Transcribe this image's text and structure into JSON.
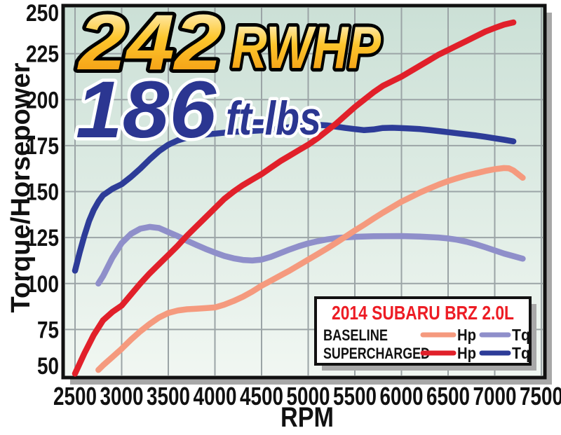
{
  "callouts": {
    "hp": {
      "value": "242",
      "unit": "RWHP"
    },
    "tq": {
      "value": "186",
      "unit": "ft-lbs"
    }
  },
  "axes": {
    "y_label": "Torque/Horsepower",
    "x_label": "RPM",
    "y_ticks": [
      250,
      225,
      200,
      175,
      150,
      125,
      100,
      75,
      50
    ],
    "x_ticks": [
      2500,
      3000,
      3500,
      4000,
      4500,
      5000,
      5500,
      6000,
      6500,
      7000,
      7500
    ]
  },
  "legend": {
    "title": "2014 SUBARU BRZ 2.0L",
    "rows": [
      {
        "label": "BASELINE",
        "entries": [
          {
            "name": "Hp",
            "color": "#f59a7e"
          },
          {
            "name": "Tq",
            "color": "#8f8fca"
          }
        ]
      },
      {
        "label": "SUPERCHARGED",
        "entries": [
          {
            "name": "Hp",
            "color": "#e1202a"
          },
          {
            "name": "Tq",
            "color": "#2d3c98"
          }
        ]
      }
    ]
  },
  "colors": {
    "gold_top": "#fffef2",
    "gold_mid": "#fdc62c",
    "gold_bottom": "#f1930e",
    "blue_text": "#2b3691",
    "bg_top": "#cbe0d6",
    "bg_bottom": "#f1f7f2",
    "grid": "#9ba4a6",
    "border": "#111111",
    "shadow": "#a8a8a8",
    "legend_title": "#ed1c24",
    "axis_text": "#111111"
  },
  "chart_data": {
    "type": "line",
    "title": "242 RWHP / 186 ft-lbs",
    "subtitle": "2014 Subaru BRZ 2.0L baseline vs supercharged dyno",
    "xlabel": "RPM",
    "ylabel": "Torque/Horsepower",
    "xlim": [
      2500,
      7500
    ],
    "ylim": [
      50,
      250
    ],
    "x_tick_step": 500,
    "y_tick_step": 25,
    "grid": true,
    "legend_position": "bottom-right",
    "series": [
      {
        "name": "Baseline Tq",
        "color": "#8f8fca",
        "points": [
          [
            2750,
            100
          ],
          [
            2800,
            104
          ],
          [
            2900,
            114
          ],
          [
            3000,
            122
          ],
          [
            3100,
            127
          ],
          [
            3200,
            129.8
          ],
          [
            3300,
            130.8
          ],
          [
            3400,
            130.2
          ],
          [
            3500,
            128
          ],
          [
            3600,
            125.8
          ],
          [
            3700,
            123.3
          ],
          [
            3800,
            121
          ],
          [
            3900,
            118.8
          ],
          [
            4000,
            116.8
          ],
          [
            4100,
            115
          ],
          [
            4200,
            113.7
          ],
          [
            4300,
            112.8
          ],
          [
            4400,
            112.5
          ],
          [
            4500,
            113
          ],
          [
            4600,
            114.5
          ],
          [
            4700,
            116.5
          ],
          [
            4800,
            118.5
          ],
          [
            4900,
            120.3
          ],
          [
            5000,
            121.8
          ],
          [
            5100,
            123
          ],
          [
            5200,
            124
          ],
          [
            5300,
            124.7
          ],
          [
            5400,
            125.1
          ],
          [
            5500,
            125.4
          ],
          [
            5700,
            125.7
          ],
          [
            6000,
            125.8
          ],
          [
            6200,
            125.5
          ],
          [
            6400,
            125
          ],
          [
            6500,
            124.5
          ],
          [
            6600,
            123.8
          ],
          [
            6700,
            122.7
          ],
          [
            6800,
            121.3
          ],
          [
            6900,
            119.7
          ],
          [
            7000,
            118
          ],
          [
            7100,
            116.3
          ],
          [
            7200,
            114.9
          ],
          [
            7300,
            113.5
          ]
        ]
      },
      {
        "name": "Baseline Hp",
        "color": "#f59a7e",
        "points": [
          [
            2750,
            53
          ],
          [
            2800,
            55.5
          ],
          [
            2900,
            60
          ],
          [
            3000,
            64.5
          ],
          [
            3100,
            69.5
          ],
          [
            3200,
            74
          ],
          [
            3300,
            78
          ],
          [
            3400,
            81.5
          ],
          [
            3500,
            84
          ],
          [
            3600,
            85.3
          ],
          [
            3700,
            86
          ],
          [
            3800,
            86.3
          ],
          [
            3900,
            86.6
          ],
          [
            4000,
            87
          ],
          [
            4100,
            88.5
          ],
          [
            4200,
            90.5
          ],
          [
            4300,
            92.8
          ],
          [
            4400,
            95.6
          ],
          [
            4500,
            98.8
          ],
          [
            4600,
            101.5
          ],
          [
            4700,
            104.3
          ],
          [
            4800,
            107
          ],
          [
            4900,
            110
          ],
          [
            5000,
            113
          ],
          [
            5100,
            116
          ],
          [
            5200,
            119
          ],
          [
            5300,
            122.2
          ],
          [
            5400,
            125.5
          ],
          [
            5500,
            128.8
          ],
          [
            5600,
            132
          ],
          [
            5700,
            135.3
          ],
          [
            5800,
            138.5
          ],
          [
            5900,
            141.5
          ],
          [
            6000,
            144.5
          ],
          [
            6100,
            147
          ],
          [
            6200,
            149.5
          ],
          [
            6300,
            151.7
          ],
          [
            6400,
            153.8
          ],
          [
            6500,
            155.7
          ],
          [
            6600,
            157.3
          ],
          [
            6700,
            158.8
          ],
          [
            6800,
            160
          ],
          [
            6900,
            161.2
          ],
          [
            7000,
            162.2
          ],
          [
            7100,
            162.8
          ],
          [
            7150,
            162.7
          ],
          [
            7200,
            161.5
          ],
          [
            7300,
            157.5
          ]
        ]
      },
      {
        "name": "Supercharged Tq",
        "color": "#2d3c98",
        "points": [
          [
            2500,
            107
          ],
          [
            2550,
            117
          ],
          [
            2600,
            126
          ],
          [
            2650,
            134
          ],
          [
            2700,
            140
          ],
          [
            2750,
            144.5
          ],
          [
            2800,
            148
          ],
          [
            2900,
            151.5
          ],
          [
            3000,
            154
          ],
          [
            3100,
            158
          ],
          [
            3200,
            162.5
          ],
          [
            3300,
            167.5
          ],
          [
            3400,
            172
          ],
          [
            3500,
            175.5
          ],
          [
            3600,
            177.8
          ],
          [
            3700,
            179.3
          ],
          [
            3800,
            180.3
          ],
          [
            3900,
            181
          ],
          [
            4000,
            181.5
          ],
          [
            4200,
            182.5
          ],
          [
            4400,
            183
          ],
          [
            4600,
            183.6
          ],
          [
            4800,
            185
          ],
          [
            5000,
            186
          ],
          [
            5100,
            186.3
          ],
          [
            5200,
            186
          ],
          [
            5300,
            185.3
          ],
          [
            5400,
            184.6
          ],
          [
            5500,
            184
          ],
          [
            5600,
            183.4
          ],
          [
            5700,
            183.8
          ],
          [
            5800,
            184.6
          ],
          [
            5900,
            184.7
          ],
          [
            6000,
            184.5
          ],
          [
            6100,
            184.3
          ],
          [
            6200,
            184
          ],
          [
            6300,
            183.5
          ],
          [
            6400,
            182.9
          ],
          [
            6500,
            182.3
          ],
          [
            6600,
            181.7
          ],
          [
            6700,
            181.1
          ],
          [
            6800,
            180.5
          ],
          [
            6900,
            179.8
          ],
          [
            7000,
            179
          ],
          [
            7100,
            178.2
          ],
          [
            7200,
            177.3
          ]
        ]
      },
      {
        "name": "Supercharged Hp",
        "color": "#e1202a",
        "points": [
          [
            2500,
            51
          ],
          [
            2600,
            62
          ],
          [
            2700,
            72
          ],
          [
            2800,
            80
          ],
          [
            2900,
            84.5
          ],
          [
            3000,
            88
          ],
          [
            3100,
            94
          ],
          [
            3200,
            100
          ],
          [
            3300,
            105.5
          ],
          [
            3400,
            110.5
          ],
          [
            3500,
            115.5
          ],
          [
            3600,
            120.5
          ],
          [
            3700,
            126
          ],
          [
            3800,
            131
          ],
          [
            3900,
            136
          ],
          [
            4000,
            141
          ],
          [
            4100,
            146
          ],
          [
            4200,
            150
          ],
          [
            4300,
            153.5
          ],
          [
            4400,
            156.5
          ],
          [
            4500,
            159.5
          ],
          [
            4600,
            163
          ],
          [
            4700,
            166.5
          ],
          [
            4800,
            169.5
          ],
          [
            4900,
            172.5
          ],
          [
            5000,
            175.5
          ],
          [
            5100,
            179
          ],
          [
            5200,
            183
          ],
          [
            5300,
            187
          ],
          [
            5400,
            191.5
          ],
          [
            5500,
            196
          ],
          [
            5600,
            200
          ],
          [
            5700,
            204
          ],
          [
            5800,
            207.5
          ],
          [
            5900,
            210
          ],
          [
            6000,
            212.5
          ],
          [
            6100,
            215.5
          ],
          [
            6200,
            218.5
          ],
          [
            6300,
            221.5
          ],
          [
            6400,
            224.5
          ],
          [
            6500,
            227
          ],
          [
            6600,
            229.5
          ],
          [
            6700,
            232
          ],
          [
            6800,
            234.5
          ],
          [
            6900,
            237
          ],
          [
            7000,
            239
          ],
          [
            7100,
            240.8
          ],
          [
            7200,
            242
          ]
        ]
      }
    ]
  }
}
